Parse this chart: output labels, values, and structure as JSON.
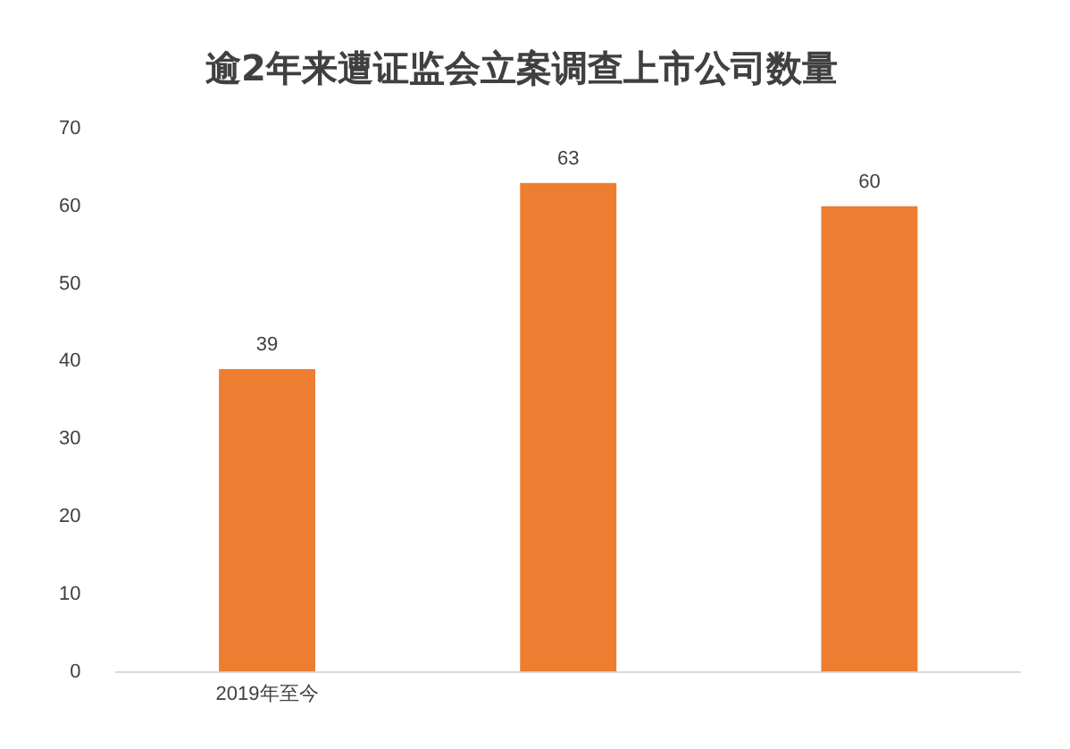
{
  "chart_data": {
    "type": "bar",
    "title": "逾2年来遭证监会立案调查上市公司数量",
    "categories": [
      "2019年至今",
      null,
      null
    ],
    "values": [
      39,
      63,
      60
    ],
    "color": "#ed7d31",
    "ylim": [
      0,
      70
    ],
    "yticks": [
      0,
      10,
      20,
      30,
      40,
      50,
      60,
      70
    ],
    "grid": false,
    "data_labels": true
  }
}
